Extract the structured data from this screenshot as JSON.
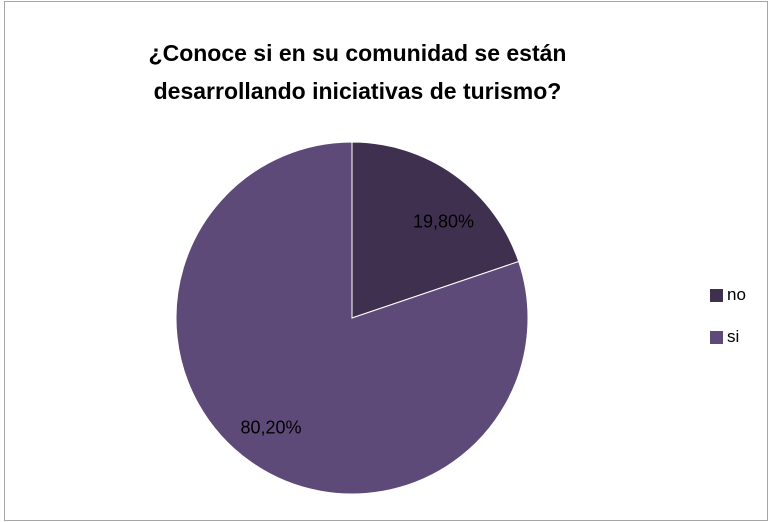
{
  "chart_data": {
    "type": "pie",
    "title": "¿Conoce si en su comunidad se están desarrollando iniciativas de turismo?",
    "title_lines": [
      "¿Conoce si en su comunidad se están",
      "desarrollando iniciativas de turismo?"
    ],
    "categories": [
      "no",
      "si"
    ],
    "values": [
      19.8,
      80.2
    ],
    "data_labels": [
      "19,80%",
      "80,20%"
    ],
    "colors": [
      "#40304f",
      "#5e4a79"
    ],
    "legend_position": "right"
  }
}
